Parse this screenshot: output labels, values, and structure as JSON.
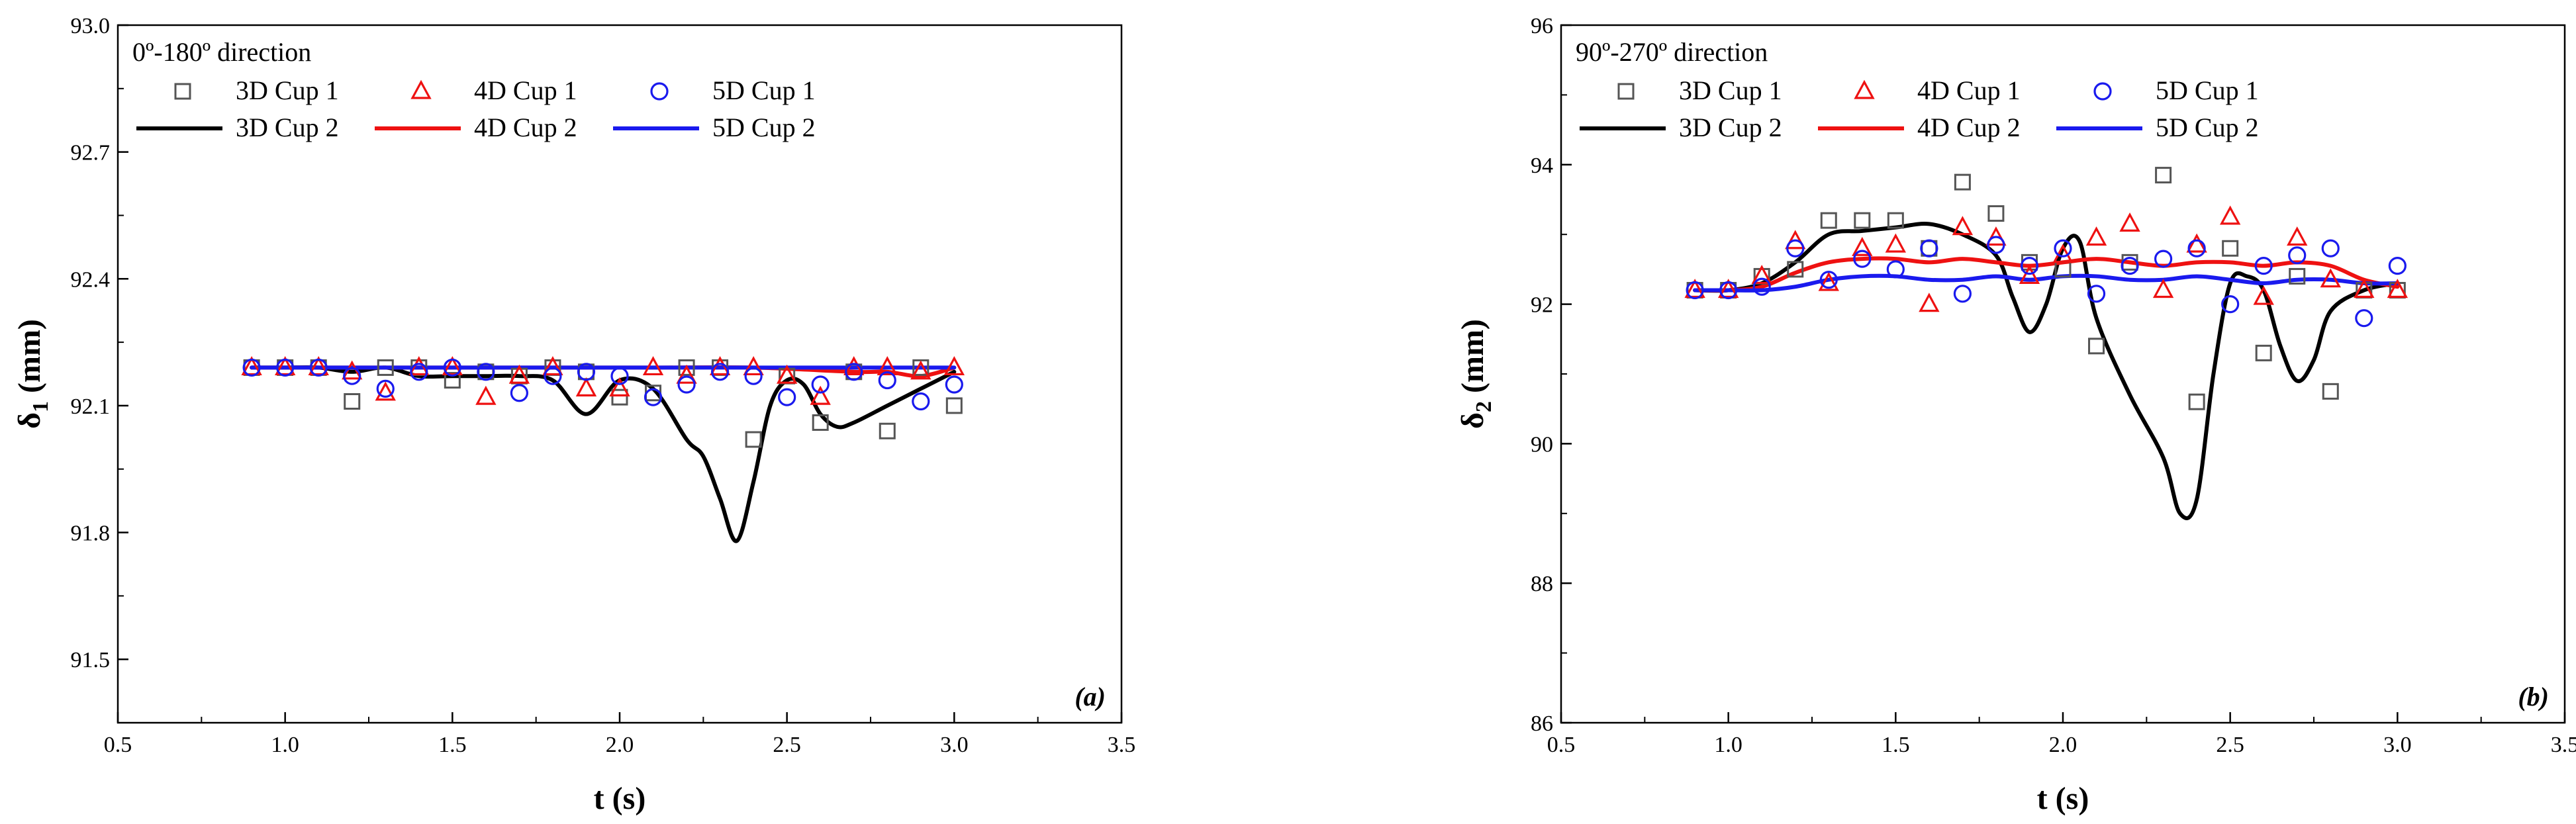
{
  "chart_data": [
    {
      "type": "scatter",
      "panel": "(a)",
      "direction_label": "0º-180º direction",
      "xlabel": "t (s)",
      "ylabel_main": "δ",
      "ylabel_sub": "1",
      "ylabel_unit": " (mm)",
      "xlim": [
        0.5,
        3.5
      ],
      "ylim": [
        91.35,
        93.0
      ],
      "xticks": [
        0.5,
        1.0,
        1.5,
        2.0,
        2.5,
        3.0,
        3.5
      ],
      "xtick_labels": [
        "0.5",
        "1.0",
        "1.5",
        "2.0",
        "2.5",
        "3.0",
        "3.5"
      ],
      "yticks": [
        91.5,
        91.8,
        92.1,
        92.4,
        92.7,
        93.0
      ],
      "ytick_labels": [
        "91.5",
        "91.8",
        "92.1",
        "92.4",
        "92.7",
        "93.0"
      ],
      "series": [
        {
          "name": "3D Cup 1",
          "kind": "scatter",
          "marker": "square",
          "color": "#555555",
          "x": [
            0.9,
            1.0,
            1.1,
            1.2,
            1.3,
            1.4,
            1.5,
            1.6,
            1.7,
            1.8,
            1.9,
            2.0,
            2.1,
            2.2,
            2.3,
            2.4,
            2.5,
            2.6,
            2.7,
            2.8,
            2.9,
            3.0
          ],
          "y": [
            92.19,
            92.19,
            92.19,
            92.11,
            92.19,
            92.19,
            92.16,
            92.18,
            92.17,
            92.19,
            92.18,
            92.12,
            92.13,
            92.19,
            92.19,
            92.02,
            92.17,
            92.06,
            92.18,
            92.04,
            92.19,
            92.1
          ]
        },
        {
          "name": "4D Cup 1",
          "kind": "scatter",
          "marker": "triangle",
          "color": "#ee1111",
          "x": [
            0.9,
            1.0,
            1.1,
            1.2,
            1.3,
            1.4,
            1.5,
            1.6,
            1.7,
            1.8,
            1.9,
            2.0,
            2.1,
            2.2,
            2.3,
            2.4,
            2.5,
            2.6,
            2.7,
            2.8,
            2.9,
            3.0
          ],
          "y": [
            92.19,
            92.19,
            92.19,
            92.18,
            92.13,
            92.19,
            92.19,
            92.12,
            92.17,
            92.19,
            92.14,
            92.14,
            92.19,
            92.17,
            92.19,
            92.19,
            92.17,
            92.12,
            92.19,
            92.19,
            92.18,
            92.19
          ]
        },
        {
          "name": "5D Cup 1",
          "kind": "scatter",
          "marker": "circle",
          "color": "#1a1aee",
          "x": [
            0.9,
            1.0,
            1.1,
            1.2,
            1.3,
            1.4,
            1.5,
            1.6,
            1.7,
            1.8,
            1.9,
            2.0,
            2.1,
            2.2,
            2.3,
            2.4,
            2.5,
            2.6,
            2.7,
            2.8,
            2.9,
            3.0
          ],
          "y": [
            92.19,
            92.19,
            92.19,
            92.17,
            92.14,
            92.18,
            92.19,
            92.18,
            92.13,
            92.17,
            92.18,
            92.17,
            92.12,
            92.15,
            92.18,
            92.17,
            92.12,
            92.15,
            92.18,
            92.16,
            92.11,
            92.15
          ]
        },
        {
          "name": "3D Cup 2",
          "kind": "line",
          "color": "#000000",
          "x": [
            0.9,
            1.0,
            1.1,
            1.2,
            1.3,
            1.4,
            1.5,
            1.6,
            1.7,
            1.8,
            1.9,
            2.0,
            2.1,
            2.2,
            2.25,
            2.3,
            2.35,
            2.4,
            2.45,
            2.5,
            2.55,
            2.6,
            2.65,
            2.7,
            2.8,
            2.9,
            3.0
          ],
          "y": [
            92.19,
            92.19,
            92.19,
            92.18,
            92.19,
            92.17,
            92.17,
            92.17,
            92.17,
            92.16,
            92.08,
            92.16,
            92.14,
            92.02,
            91.98,
            91.88,
            91.78,
            91.92,
            92.1,
            92.16,
            92.15,
            92.08,
            92.05,
            92.06,
            92.1,
            92.14,
            92.18
          ]
        },
        {
          "name": "4D Cup 2",
          "kind": "line",
          "color": "#ee1111",
          "x": [
            0.9,
            1.2,
            1.5,
            1.8,
            2.1,
            2.4,
            2.7,
            2.8,
            2.9,
            3.0
          ],
          "y": [
            92.19,
            92.19,
            92.19,
            92.19,
            92.19,
            92.19,
            92.18,
            92.18,
            92.17,
            92.19
          ]
        },
        {
          "name": "5D Cup 2",
          "kind": "line",
          "color": "#1a1aee",
          "x": [
            0.9,
            1.2,
            1.5,
            1.8,
            2.1,
            2.4,
            2.7,
            3.0
          ],
          "y": [
            92.19,
            92.19,
            92.19,
            92.19,
            92.19,
            92.19,
            92.19,
            92.19
          ]
        }
      ]
    },
    {
      "type": "scatter",
      "panel": "(b)",
      "direction_label": "90º-270º direction",
      "xlabel": "t (s)",
      "ylabel_main": "δ",
      "ylabel_sub": "2",
      "ylabel_unit": " (mm)",
      "xlim": [
        0.5,
        3.5
      ],
      "ylim": [
        86,
        96
      ],
      "xticks": [
        0.5,
        1.0,
        1.5,
        2.0,
        2.5,
        3.0,
        3.5
      ],
      "xtick_labels": [
        "0.5",
        "1.0",
        "1.5",
        "2.0",
        "2.5",
        "3.0",
        "3.5"
      ],
      "yticks": [
        86,
        88,
        90,
        92,
        94,
        96
      ],
      "ytick_labels": [
        "86",
        "88",
        "90",
        "92",
        "94",
        "96"
      ],
      "series": [
        {
          "name": "3D Cup 1",
          "kind": "scatter",
          "marker": "square",
          "color": "#555555",
          "x": [
            0.9,
            1.0,
            1.1,
            1.2,
            1.3,
            1.4,
            1.5,
            1.6,
            1.7,
            1.8,
            1.9,
            2.0,
            2.1,
            2.2,
            2.3,
            2.4,
            2.5,
            2.6,
            2.7,
            2.8,
            2.9,
            3.0
          ],
          "y": [
            92.2,
            92.2,
            92.4,
            92.5,
            93.2,
            93.2,
            93.2,
            92.8,
            93.75,
            93.3,
            92.6,
            92.5,
            91.4,
            92.6,
            93.85,
            90.6,
            92.8,
            91.3,
            92.4,
            90.75,
            92.2,
            92.2
          ]
        },
        {
          "name": "4D Cup 1",
          "kind": "scatter",
          "marker": "triangle",
          "color": "#ee1111",
          "x": [
            0.9,
            1.0,
            1.1,
            1.2,
            1.3,
            1.4,
            1.5,
            1.6,
            1.7,
            1.8,
            1.9,
            2.0,
            2.1,
            2.2,
            2.3,
            2.4,
            2.5,
            2.6,
            2.7,
            2.8,
            2.9,
            3.0
          ],
          "y": [
            92.2,
            92.2,
            92.4,
            92.9,
            92.3,
            92.8,
            92.85,
            92.0,
            93.1,
            92.95,
            92.4,
            92.7,
            92.95,
            93.15,
            92.2,
            92.85,
            93.25,
            92.1,
            92.95,
            92.35,
            92.2,
            92.2
          ]
        },
        {
          "name": "5D Cup 1",
          "kind": "scatter",
          "marker": "circle",
          "color": "#1a1aee",
          "x": [
            0.9,
            1.0,
            1.1,
            1.2,
            1.3,
            1.4,
            1.5,
            1.6,
            1.7,
            1.8,
            1.9,
            2.0,
            2.1,
            2.2,
            2.3,
            2.4,
            2.5,
            2.6,
            2.7,
            2.8,
            2.9,
            3.0
          ],
          "y": [
            92.2,
            92.2,
            92.25,
            92.8,
            92.35,
            92.65,
            92.5,
            92.8,
            92.15,
            92.85,
            92.55,
            92.8,
            92.15,
            92.55,
            92.65,
            92.8,
            92.0,
            92.55,
            92.7,
            92.8,
            91.8,
            92.55
          ]
        },
        {
          "name": "3D Cup 2",
          "kind": "line",
          "color": "#000000",
          "x": [
            0.9,
            1.0,
            1.1,
            1.2,
            1.3,
            1.4,
            1.5,
            1.6,
            1.7,
            1.8,
            1.85,
            1.9,
            1.95,
            2.0,
            2.05,
            2.1,
            2.2,
            2.3,
            2.35,
            2.4,
            2.45,
            2.5,
            2.55,
            2.6,
            2.65,
            2.7,
            2.75,
            2.8,
            2.9,
            3.0
          ],
          "y": [
            92.2,
            92.2,
            92.3,
            92.6,
            93.0,
            93.05,
            93.1,
            93.15,
            93.0,
            92.7,
            92.1,
            91.6,
            92.0,
            92.8,
            92.9,
            91.8,
            90.7,
            89.8,
            89.0,
            89.2,
            91.0,
            92.3,
            92.4,
            92.2,
            91.4,
            90.9,
            91.2,
            91.9,
            92.2,
            92.3
          ]
        },
        {
          "name": "4D Cup 2",
          "kind": "line",
          "color": "#ee1111",
          "x": [
            0.9,
            1.0,
            1.1,
            1.2,
            1.3,
            1.4,
            1.5,
            1.6,
            1.7,
            1.8,
            1.9,
            2.0,
            2.1,
            2.2,
            2.3,
            2.4,
            2.5,
            2.6,
            2.7,
            2.8,
            2.9,
            3.0
          ],
          "y": [
            92.2,
            92.2,
            92.25,
            92.45,
            92.6,
            92.65,
            92.65,
            92.6,
            92.65,
            92.6,
            92.55,
            92.6,
            92.65,
            92.6,
            92.55,
            92.6,
            92.6,
            92.55,
            92.6,
            92.55,
            92.35,
            92.25
          ]
        },
        {
          "name": "5D Cup 2",
          "kind": "line",
          "color": "#1a1aee",
          "x": [
            0.9,
            1.0,
            1.1,
            1.2,
            1.3,
            1.4,
            1.5,
            1.6,
            1.7,
            1.8,
            1.9,
            2.0,
            2.1,
            2.2,
            2.3,
            2.4,
            2.5,
            2.6,
            2.7,
            2.8,
            2.9,
            3.0
          ],
          "y": [
            92.2,
            92.2,
            92.2,
            92.25,
            92.35,
            92.4,
            92.4,
            92.35,
            92.35,
            92.4,
            92.35,
            92.4,
            92.4,
            92.35,
            92.35,
            92.4,
            92.35,
            92.3,
            92.35,
            92.35,
            92.3,
            92.3
          ]
        }
      ]
    }
  ]
}
